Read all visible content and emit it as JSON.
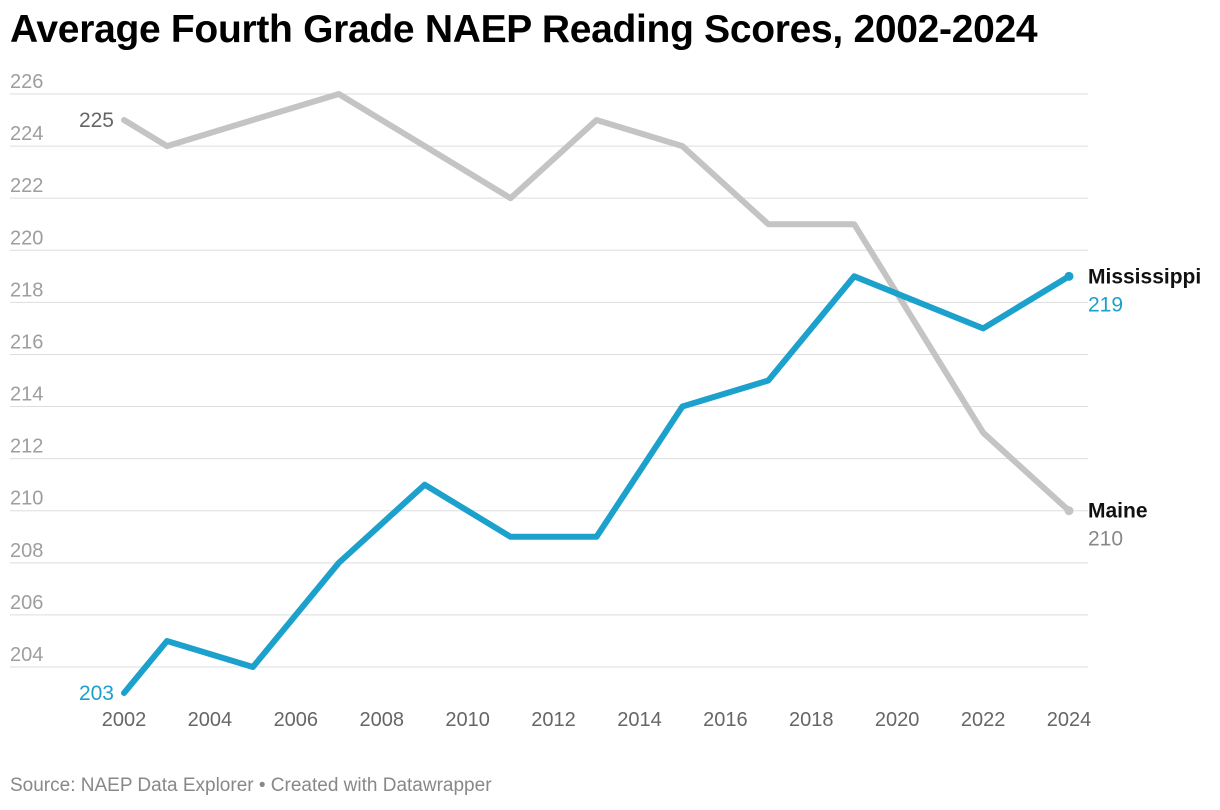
{
  "title": "Average Fourth Grade NAEP Reading Scores, 2002-2024",
  "footer": "Source: NAEP Data Explorer • Created with Datawrapper",
  "colors": {
    "mississippi": "#1ba1cc",
    "maine": "#c4c4c4",
    "grid": "#dddddd"
  },
  "chart_data": {
    "type": "line",
    "title": "Average Fourth Grade NAEP Reading Scores, 2002-2024",
    "xlabel": "",
    "ylabel": "",
    "xlim": [
      2002,
      2024
    ],
    "ylim": [
      203,
      226
    ],
    "x_ticks": [
      "2002",
      "2004",
      "2006",
      "2008",
      "2010",
      "2012",
      "2014",
      "2016",
      "2018",
      "2020",
      "2022",
      "2024"
    ],
    "y_ticks": [
      "204",
      "206",
      "208",
      "210",
      "212",
      "214",
      "216",
      "218",
      "220",
      "222",
      "224",
      "226"
    ],
    "grid": "horizontal",
    "legend": "direct labels at line ends",
    "series": [
      {
        "name": "Maine",
        "color": "#c4c4c4",
        "x": [
          2002,
          2003,
          2005,
          2007,
          2009,
          2011,
          2013,
          2015,
          2017,
          2019,
          2022,
          2024
        ],
        "y": [
          225,
          224,
          225,
          226,
          224,
          222,
          225,
          224,
          221,
          221,
          213,
          210
        ],
        "start_label": "225",
        "end_label": "210"
      },
      {
        "name": "Mississippi",
        "color": "#1ba1cc",
        "x": [
          2002,
          2003,
          2005,
          2007,
          2009,
          2011,
          2013,
          2015,
          2017,
          2019,
          2022,
          2024
        ],
        "y": [
          203,
          205,
          204,
          208,
          211,
          209,
          209,
          214,
          215,
          219,
          217,
          219
        ],
        "start_label": "203",
        "end_label": "219"
      }
    ]
  }
}
